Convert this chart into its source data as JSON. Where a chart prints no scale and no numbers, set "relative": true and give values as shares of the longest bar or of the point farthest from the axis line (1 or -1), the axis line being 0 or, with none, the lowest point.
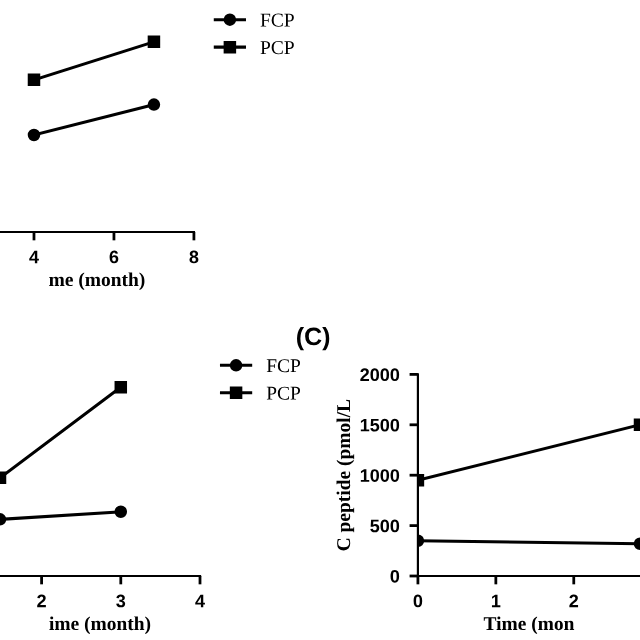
{
  "chart_data": [
    {
      "type": "line",
      "xlabel": "me (month)",
      "relative": true,
      "xlim": [
        3.15,
        8
      ],
      "xticks": [
        4,
        6,
        8
      ],
      "legend": "right",
      "tick_labels": "x",
      "grid": false,
      "series": [
        {
          "name": "FCP",
          "color": "#000000",
          "marker": "circle",
          "x": [
            4,
            7
          ],
          "values": [
            0.51,
            0.67
          ]
        },
        {
          "name": "PCP",
          "color": "#000000",
          "marker": "square",
          "x": [
            4,
            7
          ],
          "values": [
            0.8,
            1
          ]
        }
      ]
    },
    {
      "type": "line",
      "xlabel": "ime (month)",
      "relative": true,
      "xlim": [
        1.475,
        4
      ],
      "xticks": [
        2,
        3,
        4
      ],
      "legend": "right",
      "tick_labels": "x",
      "grid": false,
      "series": [
        {
          "name": "FCP",
          "color": "#000000",
          "marker": "circle",
          "x": [
            1.475,
            3
          ],
          "values": [
            0.3,
            0.34
          ]
        },
        {
          "name": "PCP",
          "color": "#000000",
          "marker": "square",
          "x": [
            1.475,
            3
          ],
          "values": [
            0.52,
            1
          ]
        }
      ]
    },
    {
      "type": "line",
      "title": "(C)",
      "xlabel": "Time (mon",
      "ylabel": "C peptide (pmol/L",
      "xlim": [
        0,
        2.85
      ],
      "xticks": [
        0,
        1,
        2
      ],
      "ylim": [
        0,
        2000
      ],
      "yticks": [
        0,
        500,
        1000,
        1500,
        2000
      ],
      "grid": false,
      "legend": false,
      "series": [
        {
          "color": "#000000",
          "marker": "circle",
          "x": [
            0,
            2.85
          ],
          "values": [
            350,
            320
          ]
        },
        {
          "color": "#000000",
          "marker": "square",
          "x": [
            0,
            2.85
          ],
          "values": [
            950,
            1500
          ]
        }
      ]
    }
  ]
}
